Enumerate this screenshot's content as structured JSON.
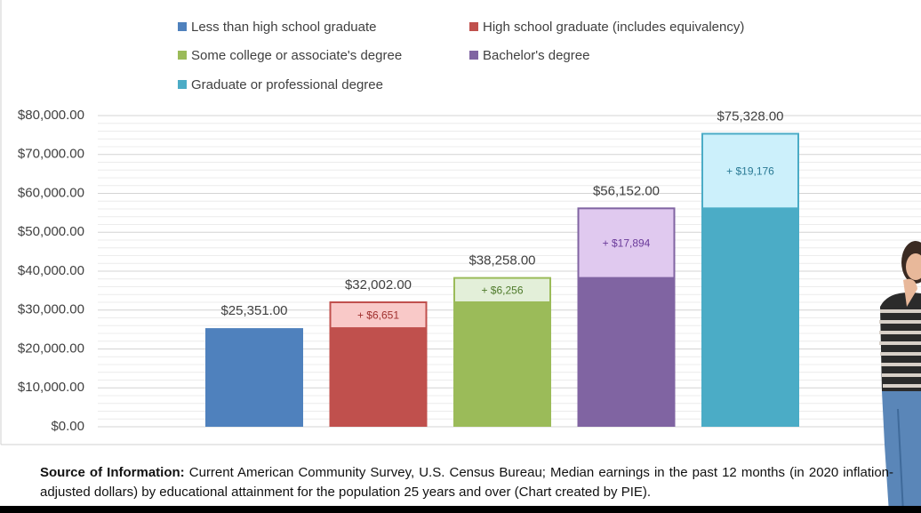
{
  "chart_data": {
    "type": "bar",
    "categories": [
      "Less than high school graduate",
      "High school graduate (includes equivalency)",
      "Some college or associate's degree",
      "Bachelor's degree",
      "Graduate or professional degree"
    ],
    "colors": [
      "#4f81bd",
      "#c0504d",
      "#9bbb59",
      "#8064a2",
      "#4bacc6"
    ],
    "increment_colors": [
      null,
      "#f9c9c8",
      "#e3efd9",
      "#e0c9ef",
      "#ccf0fb"
    ],
    "increment_text_colors": [
      null,
      "#a0302e",
      "#4e7a2a",
      "#6a3a9a",
      "#2a7a95"
    ],
    "base_values": [
      25351,
      25351,
      32002,
      38258,
      56152
    ],
    "increments": [
      null,
      6651,
      6256,
      17894,
      19176
    ],
    "increment_labels": [
      null,
      "+ $6,651",
      "+ $6,256",
      "+ $17,894",
      "+ $19,176"
    ],
    "totals": [
      25351,
      32002,
      38258,
      56152,
      75328
    ],
    "total_labels": [
      "$25,351.00",
      "$32,002.00",
      "$38,258.00",
      "$56,152.00",
      "$75,328.00"
    ],
    "ylim": [
      0,
      80000
    ],
    "yticks": [
      {
        "value": 0,
        "label": "$0.00"
      },
      {
        "value": 10000,
        "label": "$10,000.00"
      },
      {
        "value": 20000,
        "label": "$20,000.00"
      },
      {
        "value": 30000,
        "label": "$30,000.00"
      },
      {
        "value": 40000,
        "label": "$40,000.00"
      },
      {
        "value": 50000,
        "label": "$50,000.00"
      },
      {
        "value": 60000,
        "label": "$60,000.00"
      },
      {
        "value": 70000,
        "label": "$70,000.00"
      },
      {
        "value": 80000,
        "label": "$80,000.00"
      }
    ],
    "grid": true,
    "minor_grid": true,
    "legend": "top"
  },
  "source": {
    "label": "Source of Information:",
    "text": "Current American Community Survey, U.S. Census Bureau; Median earnings in the past 12 months (in 2020 inflation-adjusted dollars) by educational attainment for the population 25 years and over (Chart created by PIE)."
  }
}
